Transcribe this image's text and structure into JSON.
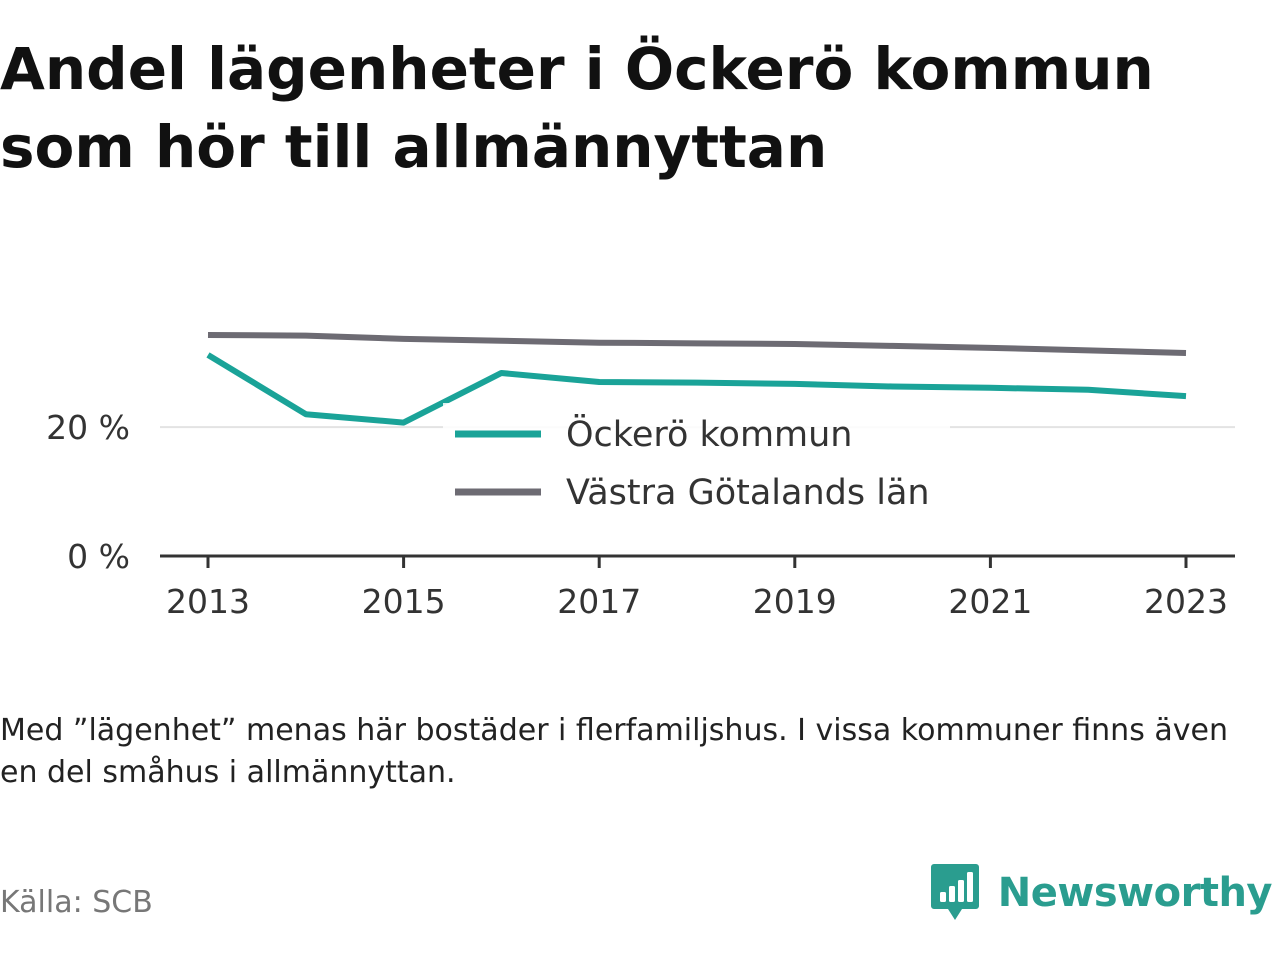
{
  "title": "Andel lägenheter i Öckerö kommun som hör till allmännyttan",
  "note": "Med ”lägenhet” menas här bostäder i flerfamiljshus. I vissa kommuner finns även en del småhus i allmännyttan.",
  "source": "Källa: SCB",
  "brand": {
    "name": "Newsworthy",
    "icon": "newsworthy-logo-icon",
    "color": "#2a9d8f"
  },
  "chart_data": {
    "type": "line",
    "x": [
      2013,
      2014,
      2015,
      2016,
      2017,
      2018,
      2019,
      2020,
      2021,
      2022,
      2023
    ],
    "x_tick_labels": [
      "2013",
      "2015",
      "2017",
      "2019",
      "2021",
      "2023"
    ],
    "y_tick_values": [
      0,
      20
    ],
    "y_tick_labels": [
      "0 %",
      "20 %"
    ],
    "ylim": [
      0,
      36
    ],
    "grid": true,
    "legend_position": "center",
    "series": [
      {
        "name": "Öckerö kommun",
        "color": "#1aa398",
        "values": [
          31.2,
          22.0,
          20.7,
          28.4,
          27.0,
          26.9,
          26.7,
          26.3,
          26.1,
          25.8,
          24.8
        ]
      },
      {
        "name": "Västra Götalands län",
        "color": "#6d6b73",
        "values": [
          34.3,
          34.2,
          33.7,
          33.4,
          33.1,
          33.0,
          32.9,
          32.6,
          32.3,
          31.9,
          31.5
        ]
      }
    ]
  }
}
